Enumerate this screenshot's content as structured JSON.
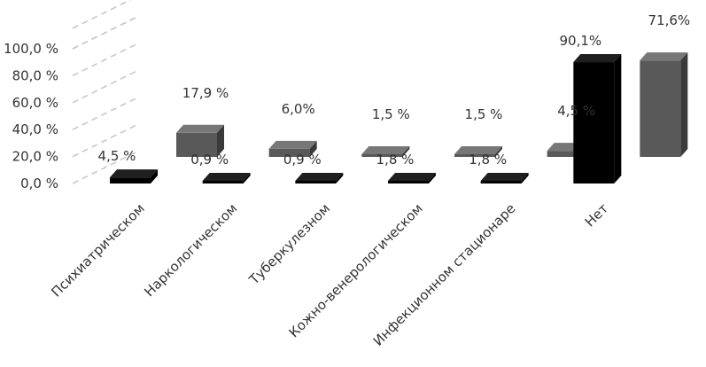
{
  "chart_data": {
    "type": "bar",
    "title": "",
    "xlabel": "",
    "ylabel": "",
    "ylim": [
      0,
      100
    ],
    "y_ticks": [
      "0,0 %",
      "20,0 %",
      "40,0 %",
      "60,0 %",
      "80,0 %",
      "100,0 %"
    ],
    "categories": [
      "Психиатрическом",
      "Наркологическом",
      "Туберкулезном",
      "Кожно-венерологическом",
      "Инфекционном стационаре",
      "Нет"
    ],
    "grid": true,
    "series": [
      {
        "values": [
          4.5,
          0.9,
          0.9,
          1.8,
          1.8,
          90.1
        ],
        "labels": [
          "4,5 %",
          "0,9 %",
          "0,9 %",
          "1,8 %",
          "1,8 %",
          "90,1%"
        ],
        "color": "#000000"
      },
      {
        "values": [
          17.9,
          6.0,
          1.5,
          1.5,
          4.5,
          71.6
        ],
        "labels": [
          "17,9 %",
          "6,0%",
          "1,5 %",
          "1,5 %",
          "4,5 %",
          "71,6%"
        ],
        "color": "#595959"
      }
    ]
  }
}
